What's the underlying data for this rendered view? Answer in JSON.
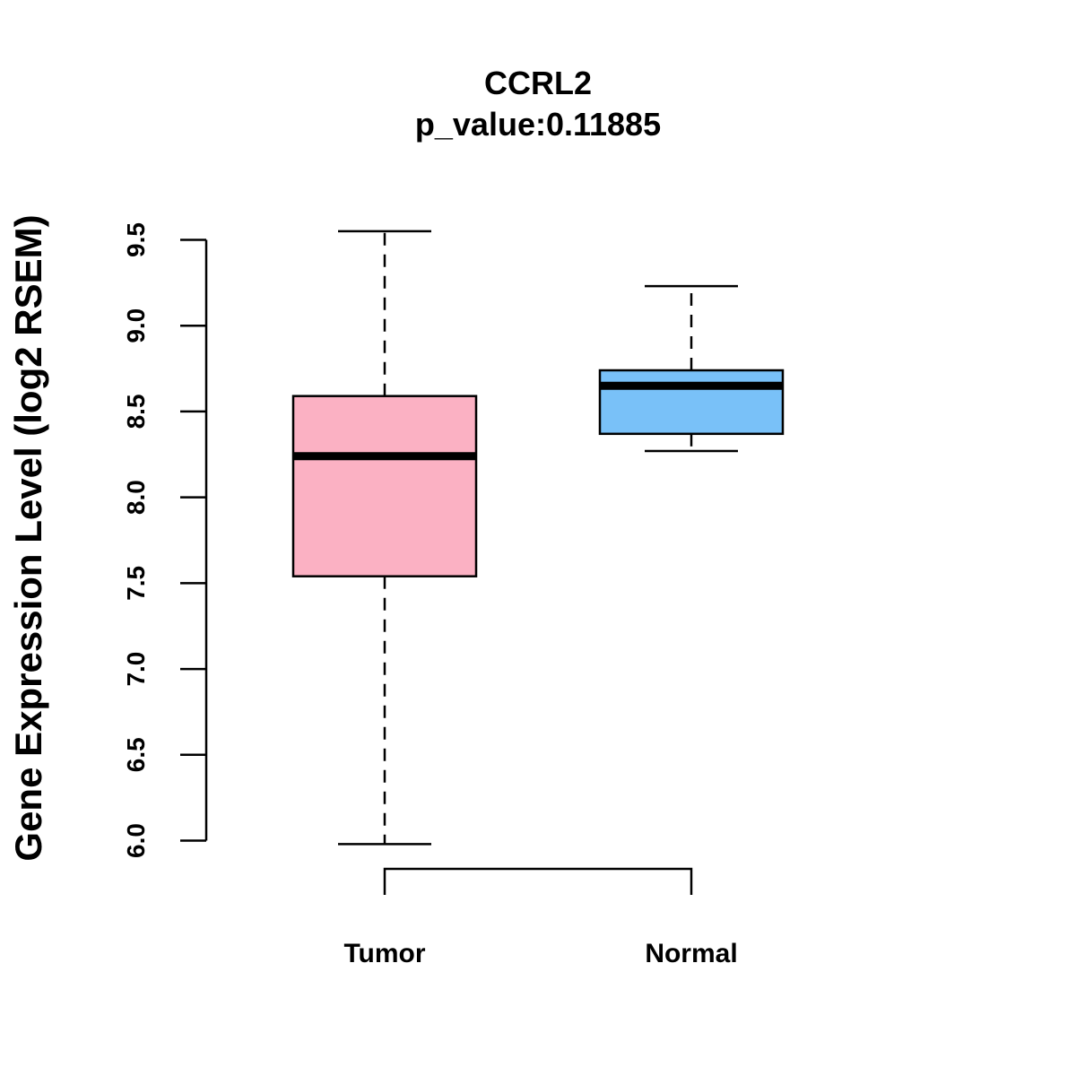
{
  "chart_data": {
    "type": "boxplot",
    "title": "CCRL2",
    "subtitle": "p_value:0.11885",
    "ylabel": "Gene Expression Level (log2 RSEM)",
    "xlabel": "",
    "ylim": [
      6.0,
      9.5
    ],
    "yticks": [
      "6.0",
      "6.5",
      "7.0",
      "7.5",
      "8.0",
      "8.5",
      "9.0",
      "9.5"
    ],
    "categories": [
      "Tumor",
      "Normal"
    ],
    "boxes": [
      {
        "name": "Tumor",
        "min": 5.98,
        "q1": 7.54,
        "median": 8.24,
        "q3": 8.59,
        "max": 9.55,
        "color": "#FBB1C3"
      },
      {
        "name": "Normal",
        "min": 8.27,
        "q1": 8.37,
        "median": 8.65,
        "q3": 8.74,
        "max": 9.23,
        "color": "#79C1F8"
      }
    ],
    "grid": false,
    "bracket": true
  }
}
